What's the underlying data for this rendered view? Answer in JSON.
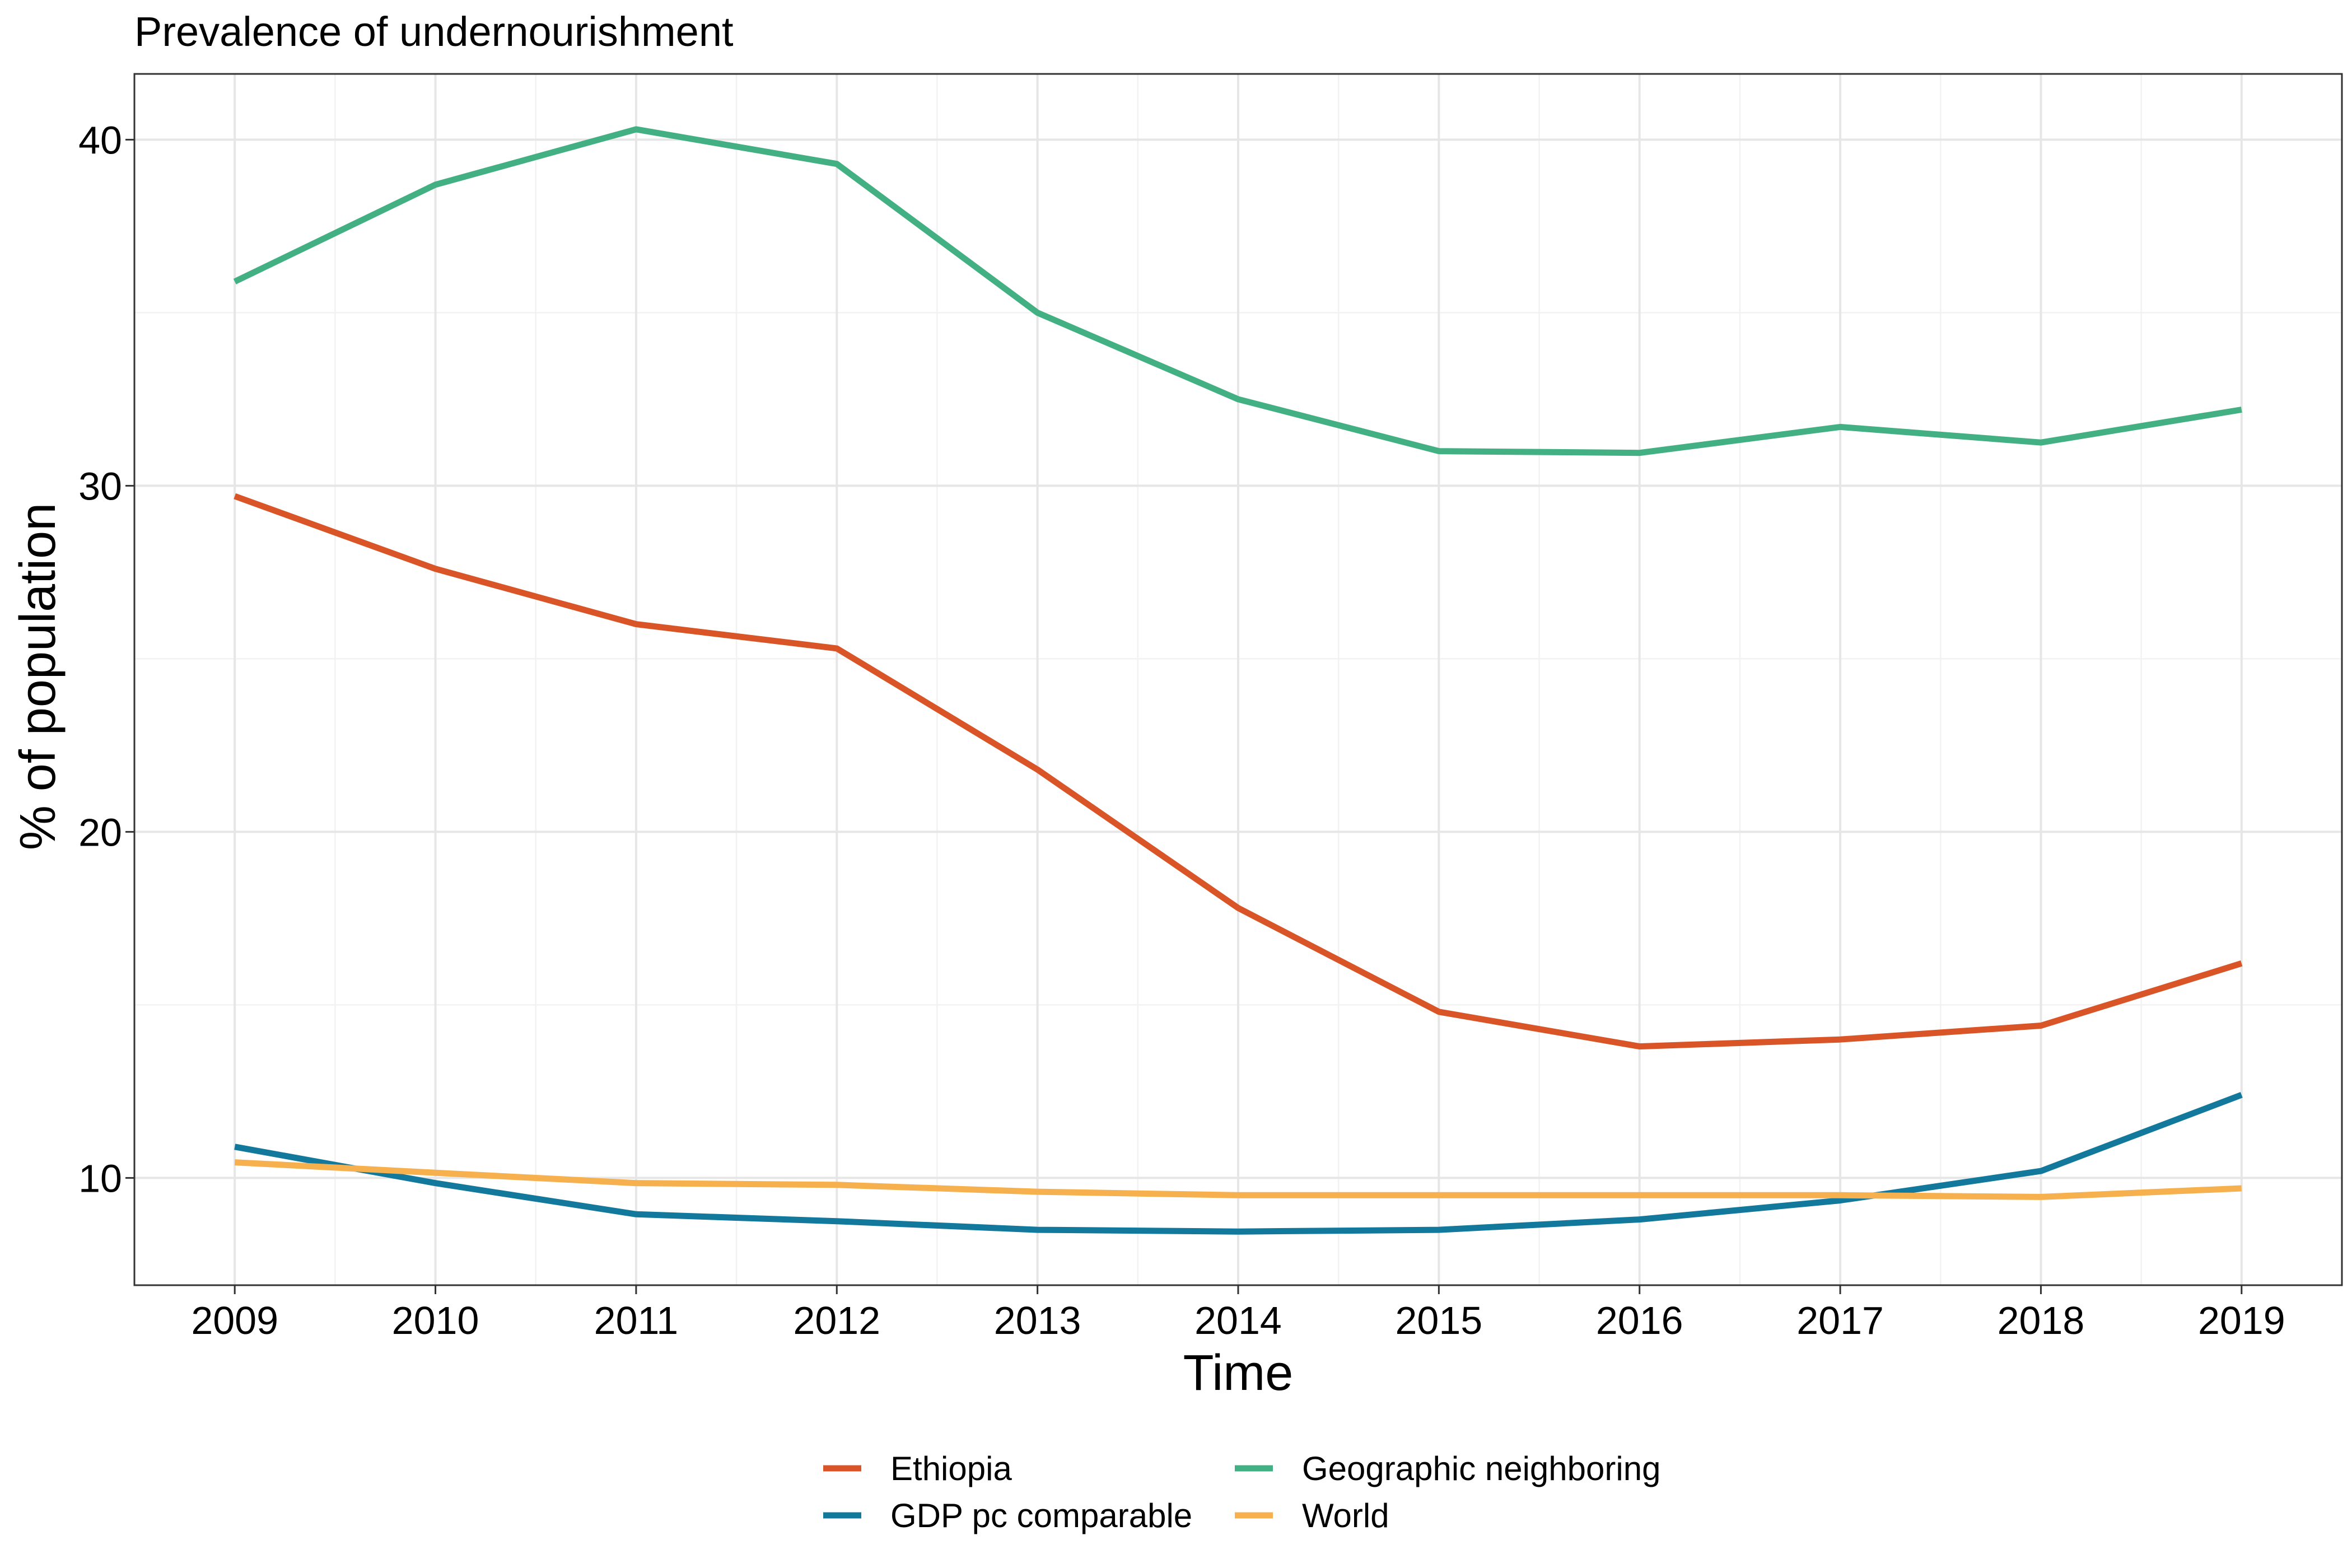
{
  "chart_data": {
    "type": "line",
    "title": "Prevalence of undernourishment",
    "xlabel": "Time",
    "ylabel": "% of population",
    "x": [
      2009,
      2010,
      2011,
      2012,
      2013,
      2014,
      2015,
      2016,
      2017,
      2018,
      2019
    ],
    "x_ticks": [
      "2009",
      "2010",
      "2011",
      "2012",
      "2013",
      "2014",
      "2015",
      "2016",
      "2017",
      "2018",
      "2019"
    ],
    "y_ticks": [
      "10",
      "20",
      "30",
      "40"
    ],
    "xlim": [
      2008.5,
      2019.5
    ],
    "ylim": [
      6.9,
      41.9
    ],
    "grid": true,
    "legend_position": "bottom",
    "series": [
      {
        "name": "Ethiopia",
        "color": "#d95527",
        "values": [
          29.7,
          27.6,
          26.0,
          25.3,
          21.8,
          17.8,
          14.8,
          13.8,
          14.0,
          14.4,
          16.2
        ]
      },
      {
        "name": "GDP pc comparable",
        "color": "#13799c",
        "values": [
          10.9,
          9.85,
          8.95,
          8.75,
          8.5,
          8.45,
          8.5,
          8.8,
          9.35,
          10.2,
          12.4
        ]
      },
      {
        "name": "Geographic neighboring",
        "color": "#43b083",
        "values": [
          35.9,
          38.7,
          40.3,
          39.3,
          35.0,
          32.5,
          31.0,
          30.95,
          31.7,
          31.25,
          32.2
        ]
      },
      {
        "name": "World",
        "color": "#f6b04d",
        "values": [
          10.45,
          10.15,
          9.85,
          9.8,
          9.6,
          9.5,
          9.5,
          9.5,
          9.5,
          9.45,
          9.7
        ]
      }
    ]
  }
}
